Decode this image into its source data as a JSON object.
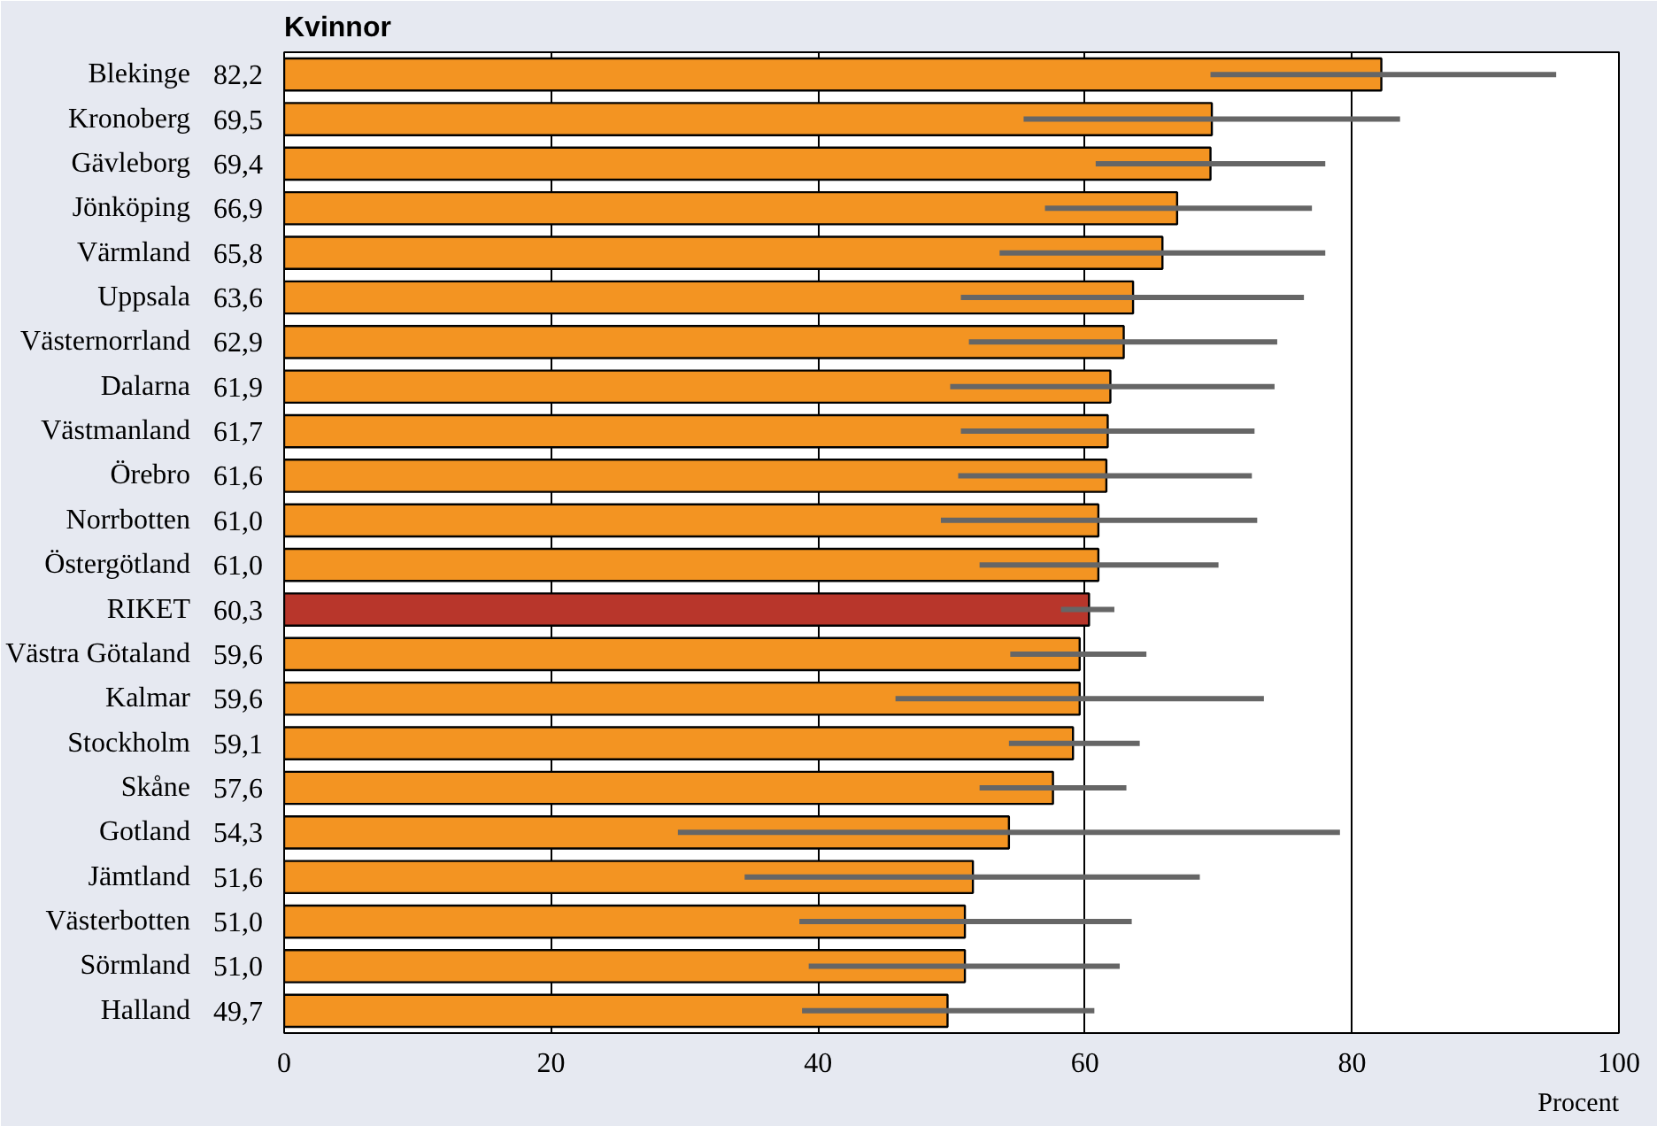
{
  "chart_data": {
    "type": "bar",
    "orientation": "horizontal",
    "title": "Kvinnor",
    "xlabel": "Procent",
    "categories": [
      "Blekinge",
      "Kronoberg",
      "Gävleborg",
      "Jönköping",
      "Värmland",
      "Uppsala",
      "Västernorrland",
      "Dalarna",
      "Västmanland",
      "Örebro",
      "Norrbotten",
      "Östergötland",
      "RIKET",
      "Västra Götaland",
      "Kalmar",
      "Stockholm",
      "Skåne",
      "Gotland",
      "Jämtland",
      "Västerbotten",
      "Sörmland",
      "Halland"
    ],
    "values": [
      82.2,
      69.5,
      69.4,
      66.9,
      65.8,
      63.6,
      62.9,
      61.9,
      61.7,
      61.6,
      61.0,
      61.0,
      60.3,
      59.6,
      59.6,
      59.1,
      57.6,
      54.3,
      51.6,
      51.0,
      51.0,
      49.7
    ],
    "value_labels": [
      "82,2",
      "69,5",
      "69,4",
      "66,9",
      "65,8",
      "63,6",
      "62,9",
      "61,9",
      "61,7",
      "61,6",
      "61,0",
      "61,0",
      "60,3",
      "59,6",
      "59,6",
      "59,1",
      "57,6",
      "54,3",
      "51,6",
      "51,0",
      "51,0",
      "49,7"
    ],
    "errors": [
      [
        69.4,
        95.3
      ],
      [
        55.4,
        83.6
      ],
      [
        60.8,
        78.0
      ],
      [
        57.0,
        77.0
      ],
      [
        53.6,
        78.0
      ],
      [
        50.7,
        76.4
      ],
      [
        51.3,
        74.4
      ],
      [
        49.9,
        74.2
      ],
      [
        50.7,
        72.7
      ],
      [
        50.5,
        72.5
      ],
      [
        49.2,
        72.9
      ],
      [
        52.1,
        70.0
      ],
      [
        58.2,
        62.2
      ],
      [
        54.4,
        64.6
      ],
      [
        45.8,
        73.4
      ],
      [
        54.3,
        64.1
      ],
      [
        52.1,
        63.1
      ],
      [
        29.5,
        79.1
      ],
      [
        34.5,
        68.6
      ],
      [
        38.6,
        63.5
      ],
      [
        39.3,
        62.6
      ],
      [
        38.8,
        60.7
      ]
    ],
    "colors": [
      "#f39422",
      "#f39422",
      "#f39422",
      "#f39422",
      "#f39422",
      "#f39422",
      "#f39422",
      "#f39422",
      "#f39422",
      "#f39422",
      "#f39422",
      "#f39422",
      "#b8362b",
      "#f39422",
      "#f39422",
      "#f39422",
      "#f39422",
      "#f39422",
      "#f39422",
      "#f39422",
      "#f39422",
      "#f39422"
    ],
    "xlim": [
      0,
      100
    ],
    "xticks": [
      0,
      20,
      40,
      60,
      80,
      100
    ],
    "grid": "x"
  }
}
